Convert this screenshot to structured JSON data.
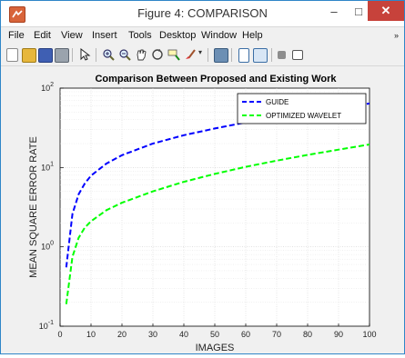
{
  "window": {
    "title": "Figure 4: COMPARISON",
    "minimize_glyph": "–",
    "maximize_glyph": "□",
    "close_glyph": "✕"
  },
  "menu": {
    "items": [
      "File",
      "Edit",
      "View",
      "Insert",
      "Tools",
      "Desktop",
      "Window",
      "Help"
    ],
    "overflow_glyph": "»"
  },
  "toolbar": {
    "icons": [
      "new-figure-icon",
      "open-file-icon",
      "save-icon",
      "print-icon",
      "pointer-icon",
      "zoom-in-icon",
      "zoom-out-icon",
      "pan-icon",
      "rotate-3d-icon",
      "data-cursor-icon",
      "brush-icon",
      "link-plot-icon",
      "insert-colorbar-icon",
      "insert-legend-icon",
      "hide-plot-tools-icon",
      "show-plot-tools-icon"
    ]
  },
  "colors": {
    "guide": "#0000ff",
    "optimized_wavelet": "#00ff00",
    "close_button": "#c7423b",
    "window_border": "#2f86c8"
  },
  "chart_data": {
    "type": "line",
    "title": "Comparison Between Proposed and Existing Work",
    "xlabel": "IMAGES",
    "ylabel": "MEAN SQUARE ERROR RATE",
    "xlim": [
      0,
      100
    ],
    "ylim": [
      0.1,
      100
    ],
    "y_scale": "log",
    "x_ticks": [
      0,
      10,
      20,
      30,
      40,
      50,
      60,
      70,
      80,
      90,
      100
    ],
    "y_ticks": [
      {
        "value": 0.1,
        "base": "10",
        "exp": "-1"
      },
      {
        "value": 1,
        "base": "10",
        "exp": "0"
      },
      {
        "value": 10,
        "base": "10",
        "exp": "1"
      },
      {
        "value": 100,
        "base": "10",
        "exp": "2"
      }
    ],
    "grid": true,
    "legend_position": "top-right",
    "series": [
      {
        "name": "GUIDE",
        "style": "dashed",
        "x": [
          2,
          4,
          6,
          8,
          10,
          15,
          20,
          30,
          40,
          50,
          60,
          70,
          80,
          90,
          100
        ],
        "y": [
          0.55,
          2.6,
          4.6,
          6.3,
          7.9,
          11.2,
          14.3,
          20,
          25.5,
          31,
          37,
          43,
          49,
          56,
          64
        ]
      },
      {
        "name": "OPTIMIZED WAVELET",
        "style": "dashed",
        "x": [
          2,
          4,
          6,
          8,
          10,
          15,
          20,
          30,
          40,
          50,
          60,
          70,
          80,
          90,
          100
        ],
        "y": [
          0.19,
          0.75,
          1.3,
          1.75,
          2.1,
          2.9,
          3.6,
          5.0,
          6.6,
          8.3,
          10.2,
          12.2,
          14.4,
          16.8,
          19.5
        ]
      }
    ]
  }
}
